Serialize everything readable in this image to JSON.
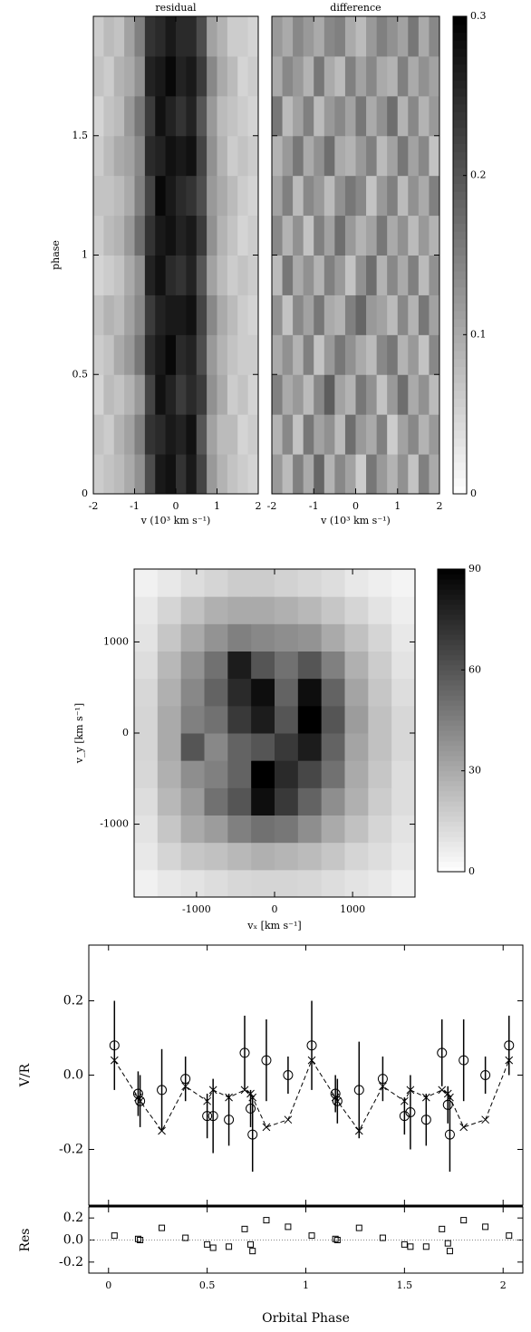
{
  "chart_data": [
    {
      "type": "trailed",
      "panels": [
        {
          "title": "residual",
          "z": [
            [
              0.06,
              0.07,
              0.08,
              0.1,
              0.13,
              0.21,
              0.27,
              0.28,
              0.24,
              0.27,
              0.22,
              0.12,
              0.09,
              0.07,
              0.06,
              0.05
            ],
            [
              0.07,
              0.06,
              0.09,
              0.11,
              0.15,
              0.24,
              0.25,
              0.27,
              0.26,
              0.28,
              0.2,
              0.11,
              0.08,
              0.08,
              0.05,
              0.06
            ],
            [
              0.05,
              0.08,
              0.07,
              0.09,
              0.12,
              0.22,
              0.28,
              0.26,
              0.23,
              0.25,
              0.23,
              0.13,
              0.1,
              0.06,
              0.07,
              0.05
            ],
            [
              0.06,
              0.07,
              0.1,
              0.12,
              0.16,
              0.25,
              0.27,
              0.29,
              0.25,
              0.26,
              0.21,
              0.12,
              0.09,
              0.07,
              0.06,
              0.06
            ],
            [
              0.07,
              0.09,
              0.08,
              0.11,
              0.14,
              0.23,
              0.26,
              0.27,
              0.27,
              0.28,
              0.22,
              0.14,
              0.1,
              0.08,
              0.06,
              0.05
            ],
            [
              0.05,
              0.06,
              0.07,
              0.1,
              0.13,
              0.26,
              0.28,
              0.25,
              0.24,
              0.26,
              0.2,
              0.11,
              0.08,
              0.06,
              0.07,
              0.06
            ],
            [
              0.06,
              0.08,
              0.09,
              0.12,
              0.17,
              0.24,
              0.27,
              0.28,
              0.26,
              0.27,
              0.23,
              0.13,
              0.09,
              0.07,
              0.05,
              0.06
            ],
            [
              0.07,
              0.07,
              0.08,
              0.1,
              0.15,
              0.22,
              0.29,
              0.27,
              0.25,
              0.24,
              0.21,
              0.12,
              0.1,
              0.08,
              0.06,
              0.05
            ],
            [
              0.06,
              0.08,
              0.1,
              0.11,
              0.14,
              0.25,
              0.26,
              0.28,
              0.27,
              0.28,
              0.22,
              0.13,
              0.09,
              0.06,
              0.07,
              0.06
            ],
            [
              0.05,
              0.07,
              0.08,
              0.12,
              0.16,
              0.23,
              0.28,
              0.26,
              0.24,
              0.26,
              0.2,
              0.12,
              0.08,
              0.07,
              0.06,
              0.05
            ],
            [
              0.07,
              0.06,
              0.09,
              0.1,
              0.13,
              0.26,
              0.27,
              0.29,
              0.26,
              0.27,
              0.23,
              0.14,
              0.1,
              0.08,
              0.05,
              0.06
            ],
            [
              0.06,
              0.08,
              0.07,
              0.11,
              0.15,
              0.24,
              0.25,
              0.27,
              0.25,
              0.25,
              0.21,
              0.11,
              0.09,
              0.06,
              0.06,
              0.05
            ]
          ]
        },
        {
          "title": "difference",
          "z": [
            [
              0.12,
              0.08,
              0.15,
              0.1,
              0.18,
              0.09,
              0.14,
              0.11,
              0.06,
              0.16,
              0.12,
              0.09,
              0.13,
              0.07,
              0.15,
              0.1
            ],
            [
              0.09,
              0.14,
              0.07,
              0.16,
              0.11,
              0.13,
              0.08,
              0.17,
              0.12,
              0.1,
              0.15,
              0.06,
              0.11,
              0.14,
              0.09,
              0.12
            ],
            [
              0.15,
              0.1,
              0.12,
              0.08,
              0.14,
              0.19,
              0.11,
              0.09,
              0.16,
              0.13,
              0.07,
              0.12,
              0.17,
              0.1,
              0.13,
              0.08
            ],
            [
              0.1,
              0.13,
              0.09,
              0.15,
              0.07,
              0.12,
              0.16,
              0.13,
              0.1,
              0.08,
              0.14,
              0.16,
              0.09,
              0.12,
              0.07,
              0.14
            ],
            [
              0.13,
              0.07,
              0.14,
              0.11,
              0.16,
              0.1,
              0.09,
              0.15,
              0.18,
              0.12,
              0.11,
              0.08,
              0.14,
              0.09,
              0.16,
              0.11
            ],
            [
              0.08,
              0.16,
              0.1,
              0.13,
              0.09,
              0.15,
              0.12,
              0.07,
              0.13,
              0.17,
              0.09,
              0.14,
              0.1,
              0.15,
              0.08,
              0.13
            ],
            [
              0.14,
              0.09,
              0.13,
              0.07,
              0.15,
              0.11,
              0.17,
              0.12,
              0.09,
              0.11,
              0.16,
              0.1,
              0.13,
              0.08,
              0.12,
              0.09
            ],
            [
              0.11,
              0.15,
              0.08,
              0.14,
              0.12,
              0.08,
              0.13,
              0.16,
              0.14,
              0.07,
              0.12,
              0.15,
              0.08,
              0.13,
              0.1,
              0.15
            ],
            [
              0.09,
              0.12,
              0.16,
              0.1,
              0.13,
              0.17,
              0.1,
              0.09,
              0.12,
              0.15,
              0.08,
              0.11,
              0.16,
              0.11,
              0.14,
              0.07
            ],
            [
              0.16,
              0.08,
              0.11,
              0.15,
              0.08,
              0.12,
              0.14,
              0.11,
              0.16,
              0.1,
              0.13,
              0.17,
              0.09,
              0.14,
              0.09,
              0.12
            ],
            [
              0.1,
              0.14,
              0.12,
              0.09,
              0.16,
              0.1,
              0.08,
              0.15,
              0.11,
              0.14,
              0.1,
              0.09,
              0.15,
              0.1,
              0.13,
              0.11
            ],
            [
              0.12,
              0.1,
              0.14,
              0.12,
              0.1,
              0.14,
              0.15,
              0.1,
              0.08,
              0.12,
              0.15,
              0.13,
              0.11,
              0.16,
              0.1,
              0.14
            ]
          ]
        }
      ],
      "xlabel": "v (10³ km s⁻¹)",
      "ylabel": "phase",
      "xlim": [
        -2,
        2
      ],
      "xticks": [
        -2,
        -1,
        0,
        1,
        2
      ],
      "ylim": [
        0,
        2
      ],
      "yticks": [
        0,
        0.5,
        1,
        1.5
      ],
      "clim": [
        0,
        0.3
      ],
      "cticks": [
        0,
        0.1,
        0.2,
        0.3
      ]
    },
    {
      "type": "doppler",
      "xlabel": "vₓ [km s⁻¹]",
      "ylabel": "v_y [km s⁻¹]",
      "xlim": [
        -1800,
        1800
      ],
      "xticks": [
        -1000,
        0,
        1000
      ],
      "ylim": [
        -1800,
        1800
      ],
      "yticks": [
        -1000,
        0,
        1000
      ],
      "clim": [
        0,
        90
      ],
      "cticks": [
        0,
        30,
        60,
        90
      ],
      "z": [
        [
          5,
          8,
          10,
          12,
          14,
          15,
          15,
          14,
          12,
          10,
          8,
          5
        ],
        [
          8,
          15,
          20,
          22,
          25,
          28,
          26,
          24,
          20,
          15,
          12,
          8
        ],
        [
          10,
          20,
          30,
          35,
          45,
          50,
          48,
          40,
          30,
          22,
          15,
          10
        ],
        [
          12,
          25,
          35,
          50,
          60,
          85,
          70,
          55,
          40,
          28,
          18,
          12
        ],
        [
          14,
          28,
          40,
          45,
          55,
          90,
          75,
          65,
          50,
          30,
          20,
          12
        ],
        [
          15,
          30,
          60,
          42,
          55,
          60,
          70,
          80,
          55,
          32,
          22,
          14
        ],
        [
          15,
          30,
          45,
          50,
          70,
          80,
          60,
          90,
          60,
          35,
          22,
          14
        ],
        [
          14,
          28,
          42,
          55,
          75,
          85,
          55,
          85,
          55,
          32,
          20,
          12
        ],
        [
          12,
          25,
          38,
          50,
          80,
          60,
          50,
          60,
          45,
          28,
          18,
          10
        ],
        [
          10,
          20,
          30,
          38,
          45,
          42,
          40,
          38,
          30,
          22,
          15,
          8
        ],
        [
          8,
          15,
          22,
          28,
          30,
          30,
          28,
          25,
          20,
          15,
          10,
          6
        ],
        [
          5,
          8,
          12,
          15,
          18,
          18,
          16,
          14,
          12,
          8,
          6,
          4
        ]
      ]
    },
    {
      "type": "vr",
      "xlabel": "Orbital Phase",
      "ylabel": "V/R",
      "res_ylabel": "Res",
      "xlim": [
        -0.1,
        2.1
      ],
      "xticks": [
        {
          "value": 0,
          "label": "0"
        },
        0.5,
        1,
        1.5,
        2
      ],
      "ylim": [
        -0.35,
        0.35
      ],
      "yticks": [
        -0.2,
        {
          "value": 0,
          "label": "0.0"
        },
        0.2
      ],
      "res_ylim": [
        -0.3,
        0.3
      ],
      "res_yticks": [
        -0.2,
        {
          "value": 0,
          "label": "0.0"
        },
        0.2
      ],
      "x": [
        0.03,
        0.15,
        0.16,
        0.27,
        0.39,
        0.5,
        0.53,
        0.61,
        0.69,
        0.72,
        0.73,
        0.8,
        0.91,
        1.03,
        1.15,
        1.16,
        1.27,
        1.39,
        1.5,
        1.53,
        1.61,
        1.69,
        1.72,
        1.73,
        1.8,
        1.91,
        2.03
      ],
      "series": [
        {
          "marker": "circle",
          "color": "#000000",
          "values": [
            0.08,
            -0.05,
            -0.07,
            -0.04,
            -0.01,
            -0.11,
            -0.11,
            -0.12,
            0.06,
            -0.09,
            -0.16,
            0.04,
            0.0,
            0.08,
            -0.05,
            -0.07,
            -0.04,
            -0.01,
            -0.11,
            -0.1,
            -0.12,
            0.06,
            -0.08,
            -0.16,
            0.04,
            0.0,
            0.08
          ],
          "errors": [
            0.12,
            0.06,
            0.07,
            0.11,
            0.06,
            0.06,
            0.1,
            0.07,
            0.1,
            0.05,
            0.1,
            0.11,
            0.05,
            0.12,
            0.05,
            0.06,
            0.13,
            0.06,
            0.05,
            0.1,
            0.07,
            0.09,
            0.05,
            0.1,
            0.11,
            0.05,
            0.08
          ]
        },
        {
          "marker": "cross",
          "color": "#000000",
          "dashed": true,
          "values": [
            0.04,
            -0.06,
            -0.07,
            -0.15,
            -0.03,
            -0.07,
            -0.04,
            -0.06,
            -0.04,
            -0.05,
            -0.06,
            -0.14,
            -0.12,
            0.04,
            -0.06,
            -0.07,
            -0.15,
            -0.03,
            -0.07,
            -0.04,
            -0.06,
            -0.04,
            -0.05,
            -0.06,
            -0.14,
            -0.12,
            0.04
          ]
        },
        {
          "marker": "square",
          "color": "#000000",
          "panel": "residual",
          "values": [
            0.04,
            0.01,
            0.0,
            0.11,
            0.02,
            -0.04,
            -0.07,
            -0.06,
            0.1,
            -0.04,
            -0.1,
            0.18,
            0.12,
            0.04,
            0.01,
            0.0,
            0.11,
            0.02,
            -0.04,
            -0.06,
            -0.06,
            0.1,
            -0.03,
            -0.1,
            0.18,
            0.12,
            0.04
          ]
        }
      ]
    }
  ]
}
